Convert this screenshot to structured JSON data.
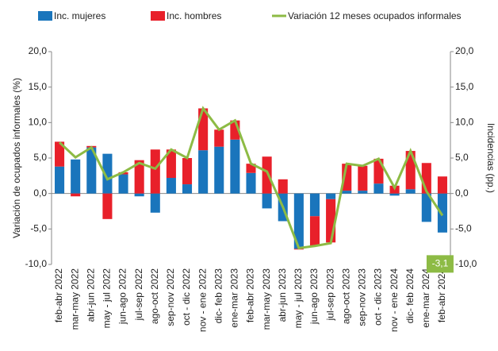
{
  "chart_data": {
    "type": "bar-line",
    "y_label": "Variación de ocupados informales (%)",
    "y2_label": "Incidencias (pp.)",
    "annotation": "-3,1",
    "categories": [
      "feb-abr 2022",
      "mar-may 2022",
      "abr-jun 2022",
      "may - jul 2022",
      "jun-ago 2022",
      "jul-sep 2022",
      "ago-oct 2022",
      "sep-nov 2022",
      "oct - dic 2022",
      "nov - ene 2022",
      "dic- feb 2023",
      "ene-mar 2023",
      "feb-abr 2023",
      "mar-may 2023",
      "abr-jun 2023",
      "may - jul 2023",
      "jun-ago 2023",
      "jul-sep 2023",
      "ago-oct 2023",
      "sep-nov 2023",
      "oct - dic 2023",
      "nov - ene 2024",
      "dic- feb 2024",
      "ene-mar 2024",
      "feb-abr 2024"
    ],
    "series": [
      {
        "name": "Inc. mujeres",
        "type": "bar",
        "axis": "y2",
        "color": "#1a75bc",
        "values": [
          3.8,
          4.8,
          6.5,
          5.6,
          2.7,
          -0.4,
          -2.7,
          2.2,
          1.3,
          6.1,
          6.6,
          7.6,
          2.9,
          -2.1,
          -3.9,
          -7.8,
          -3.2,
          -0.8,
          0.4,
          0.4,
          1.4,
          -0.3,
          0.6,
          -4.0,
          -5.5
        ]
      },
      {
        "name": "Inc. hombres",
        "type": "bar",
        "axis": "y2",
        "color": "#e8202a",
        "values": [
          3.5,
          -0.4,
          0.2,
          -3.6,
          0.3,
          4.7,
          6.2,
          4.0,
          3.7,
          5.9,
          2.4,
          2.7,
          1.3,
          5.2,
          2.0,
          -0.1,
          -4.2,
          -6.1,
          3.8,
          3.5,
          3.5,
          1.1,
          5.4,
          4.3,
          2.4
        ]
      },
      {
        "name": "Variación 12 meses ocupados informales",
        "type": "line",
        "color": "#8dbb45",
        "values": [
          7.2,
          5.1,
          6.5,
          2.0,
          3.0,
          4.3,
          3.5,
          6.2,
          5.0,
          12.0,
          9.0,
          10.3,
          4.2,
          3.1,
          -1.9,
          -7.7,
          -7.4,
          -7.0,
          4.2,
          3.9,
          4.9,
          0.8,
          6.0,
          0.3,
          -3.1
        ]
      }
    ],
    "ylim": [
      -10,
      20
    ],
    "yticks": [
      {
        "value": -10,
        "label": "-10,0"
      },
      {
        "value": -5,
        "label": "-5,0"
      },
      {
        "value": 0,
        "label": "0,0"
      },
      {
        "value": 5,
        "label": "5,0"
      },
      {
        "value": 10,
        "label": "10,0"
      },
      {
        "value": 15,
        "label": "15,0"
      },
      {
        "value": 20,
        "label": "20,0"
      }
    ],
    "y2lim": [
      -10,
      20
    ],
    "y2ticks": [
      {
        "value": -10,
        "label": "-10,0"
      },
      {
        "value": -5,
        "label": "-5,0"
      },
      {
        "value": 0,
        "label": "0,0"
      },
      {
        "value": 5,
        "label": "5,0"
      },
      {
        "value": 10,
        "label": "10,0"
      },
      {
        "value": 15,
        "label": "15,0"
      },
      {
        "value": 20,
        "label": "20,0"
      }
    ],
    "grid": false
  }
}
